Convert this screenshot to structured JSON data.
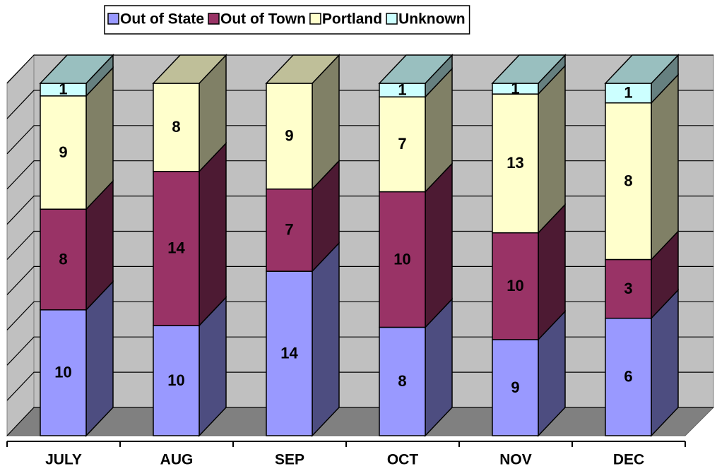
{
  "chart_data": {
    "type": "stacked_bar_3d_100",
    "categories": [
      "JULY",
      "AUG",
      "SEP",
      "OCT",
      "NOV",
      "DEC"
    ],
    "series": [
      {
        "name": "Out of State",
        "color": "#9999ff",
        "values": [
          10,
          10,
          14,
          8,
          9,
          6
        ]
      },
      {
        "name": "Out of Town",
        "color": "#993366",
        "values": [
          8,
          14,
          7,
          10,
          10,
          3
        ]
      },
      {
        "name": "Portland",
        "color": "#ffffcc",
        "values": [
          9,
          8,
          9,
          7,
          13,
          8
        ]
      },
      {
        "name": "Unknown",
        "color": "#ccffff",
        "values": [
          1,
          0,
          0,
          1,
          1,
          1
        ]
      }
    ],
    "ylim": [
      0,
      100
    ],
    "yticks": [
      0,
      10,
      20,
      30,
      40,
      50,
      60,
      70,
      80,
      90,
      100
    ],
    "grid": true,
    "legend": "top"
  }
}
